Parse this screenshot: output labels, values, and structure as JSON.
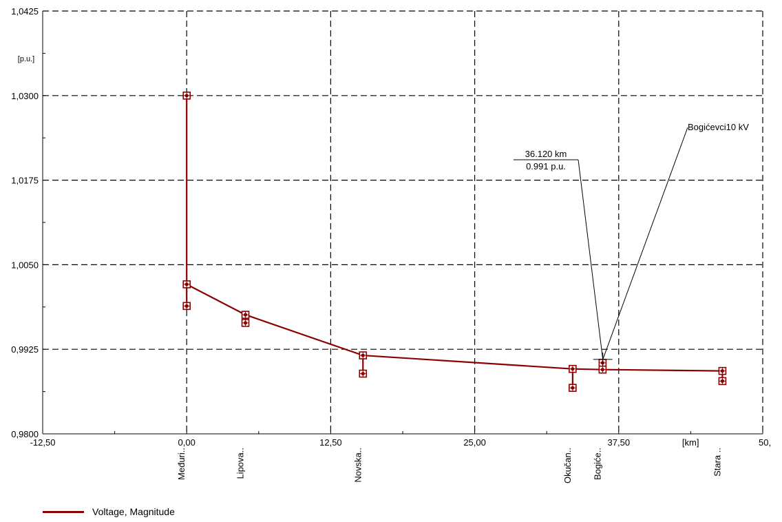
{
  "chart_data": {
    "type": "line",
    "xlabel": "[km]",
    "ylabel": "[p.u.]",
    "xlim": [
      -12.5,
      50
    ],
    "ylim": [
      0.98,
      1.0425
    ],
    "x_ticks": [
      "-12,50",
      "0,00",
      "12,50",
      "25,00",
      "37,50",
      "50,"
    ],
    "x_tick_values": [
      -12.5,
      0,
      12.5,
      25,
      37.5,
      50
    ],
    "y_ticks": [
      "0,9800",
      "0,9925",
      "1,0050",
      "1,0175",
      "1,0300",
      "1,0425"
    ],
    "y_tick_values": [
      0.98,
      0.9925,
      1.005,
      1.0175,
      1.03,
      1.0425
    ],
    "grid": true,
    "legend_position": "bottom-left",
    "series": [
      {
        "name": "Voltage, Magnitude",
        "color": "#8b0000",
        "main_line": [
          {
            "x": 0.0,
            "y": 1.0021
          },
          {
            "x": 5.1,
            "y": 0.9976
          },
          {
            "x": 15.3,
            "y": 0.9916
          },
          {
            "x": 33.5,
            "y": 0.9896
          },
          {
            "x": 36.1,
            "y": 0.9895
          },
          {
            "x": 46.5,
            "y": 0.9893
          }
        ],
        "branches": [
          [
            {
              "x": 0.0,
              "y": 1.03
            },
            {
              "x": 0.0,
              "y": 1.0021
            }
          ],
          [
            {
              "x": 0.0,
              "y": 1.0021
            },
            {
              "x": 0.0,
              "y": 0.9989
            }
          ],
          [
            {
              "x": 5.1,
              "y": 0.9976
            },
            {
              "x": 5.1,
              "y": 0.9964
            }
          ],
          [
            {
              "x": 15.3,
              "y": 0.9916
            },
            {
              "x": 15.3,
              "y": 0.9889
            }
          ],
          [
            {
              "x": 33.5,
              "y": 0.9896
            },
            {
              "x": 33.5,
              "y": 0.9868
            }
          ],
          [
            {
              "x": 36.1,
              "y": 0.9905
            },
            {
              "x": 36.1,
              "y": 0.9895
            }
          ],
          [
            {
              "x": 46.5,
              "y": 0.9893
            },
            {
              "x": 46.5,
              "y": 0.9878
            }
          ]
        ],
        "markers": [
          {
            "x": 0.0,
            "y": 1.03
          },
          {
            "x": 0.0,
            "y": 1.0021
          },
          {
            "x": 0.0,
            "y": 0.9989
          },
          {
            "x": 5.1,
            "y": 0.9976
          },
          {
            "x": 5.1,
            "y": 0.9964
          },
          {
            "x": 15.3,
            "y": 0.9916
          },
          {
            "x": 15.3,
            "y": 0.9889
          },
          {
            "x": 33.5,
            "y": 0.9896
          },
          {
            "x": 33.5,
            "y": 0.9868
          },
          {
            "x": 36.1,
            "y": 0.9905
          },
          {
            "x": 36.1,
            "y": 0.9895
          },
          {
            "x": 46.5,
            "y": 0.9893
          },
          {
            "x": 46.5,
            "y": 0.9878
          }
        ]
      }
    ],
    "node_labels": [
      {
        "x": 0.0,
        "label": "Međuri.."
      },
      {
        "x": 5.1,
        "label": "Lipova.."
      },
      {
        "x": 15.3,
        "label": "Novska.."
      },
      {
        "x": 33.5,
        "label": "Okučan.."
      },
      {
        "x": 36.1,
        "label": "Bogiće.."
      },
      {
        "x": 46.5,
        "label": "Stara .."
      }
    ],
    "annotations": {
      "cursor": {
        "x": 36.12,
        "y": 0.991
      },
      "readout_km": "36.120 km",
      "readout_pu": "0.991 p.u.",
      "node_name": "Bogićevci10 kV"
    }
  }
}
